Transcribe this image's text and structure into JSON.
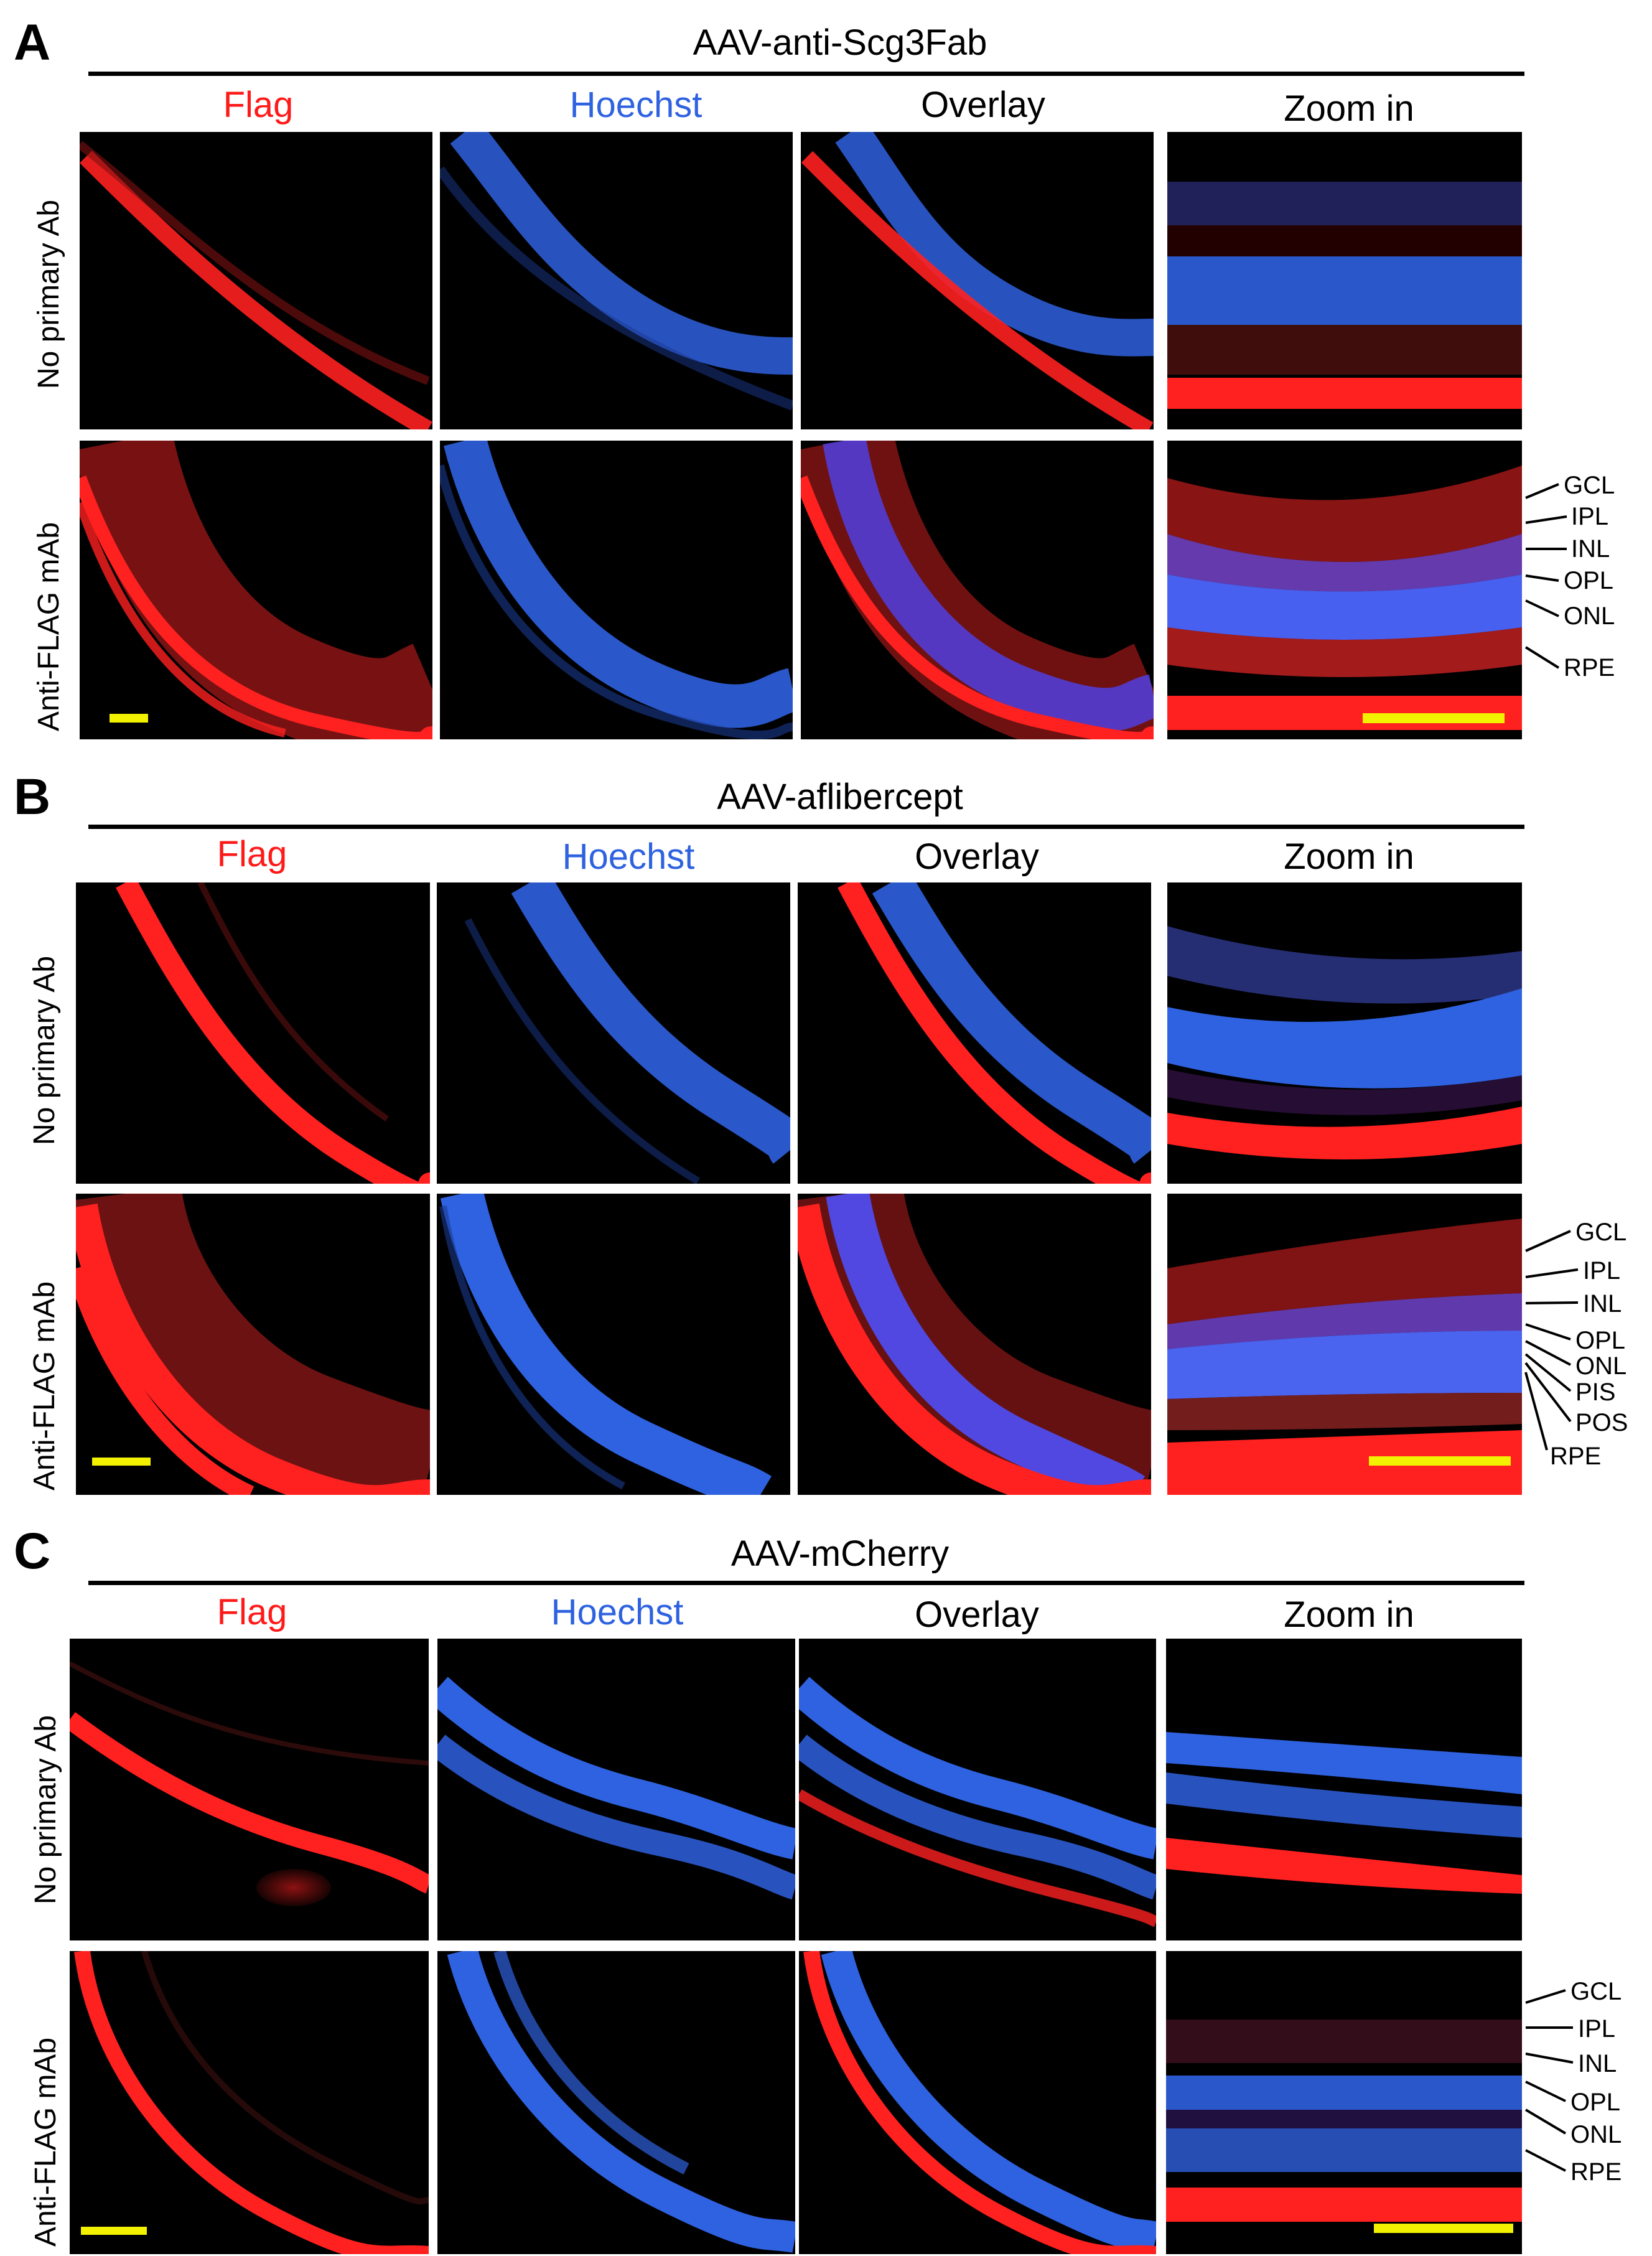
{
  "figure": {
    "panels": [
      {
        "label": "A",
        "title": "AAV-anti-Scg3Fab",
        "columns": [
          "Flag",
          "Hoechst",
          "Overlay",
          "Zoom in"
        ],
        "rows": [
          "No primary Ab",
          "Anti-FLAG mAb"
        ],
        "layer_labels": [
          "GCL",
          "IPL",
          "INL",
          "OPL",
          "ONL",
          "RPE"
        ]
      },
      {
        "label": "B",
        "title": "AAV-aflibercept",
        "columns": [
          "Flag",
          "Hoechst",
          "Overlay",
          "Zoom in"
        ],
        "rows": [
          "No primary Ab",
          "Anti-FLAG mAb"
        ],
        "layer_labels": [
          "GCL",
          "IPL",
          "INL",
          "OPL",
          "ONL",
          "PIS",
          "POS",
          "RPE"
        ]
      },
      {
        "label": "C",
        "title": "AAV-mCherry",
        "columns": [
          "Flag",
          "Hoechst",
          "Overlay",
          "Zoom in"
        ],
        "rows": [
          "No primary Ab",
          "Anti-FLAG mAb"
        ],
        "layer_labels": [
          "GCL",
          "IPL",
          "INL",
          "OPL",
          "ONL",
          "RPE"
        ]
      }
    ],
    "colors": {
      "flag_red": "#ff1a1a",
      "hoechst_blue": "#2f62e0",
      "scale_bar_yellow": "#f2f200",
      "image_background": "#000000"
    }
  }
}
